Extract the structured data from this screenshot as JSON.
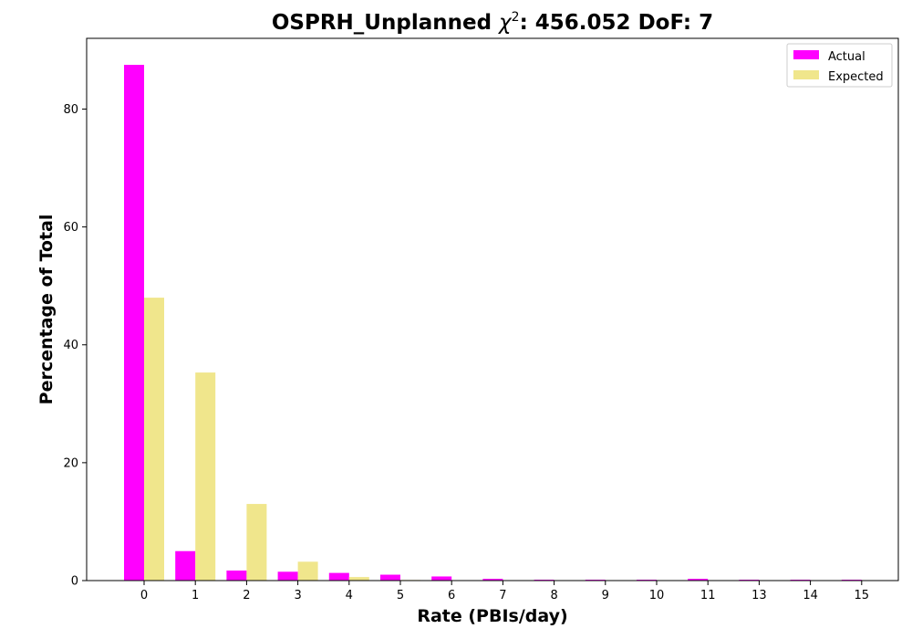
{
  "chart_data": {
    "type": "bar",
    "title_main": "OSPRH_Unplanned ",
    "title_chi": "χ",
    "title_sup": "2",
    "title_rest": ": 456.052 DoF: 7",
    "xlabel": "Rate (PBIs/day)",
    "ylabel": "Percentage of Total",
    "categories": [
      "0",
      "1",
      "2",
      "3",
      "4",
      "5",
      "6",
      "7",
      "8",
      "9",
      "10",
      "11",
      "13",
      "14",
      "15"
    ],
    "series": [
      {
        "name": "Actual",
        "color": "#ff00ff",
        "values": [
          87.5,
          5.0,
          1.7,
          1.5,
          1.3,
          1.0,
          0.7,
          0.3,
          0.15,
          0.15,
          0.15,
          0.3,
          0.15,
          0.15,
          0.15
        ]
      },
      {
        "name": "Expected",
        "color": "#f0e68c",
        "values": [
          48.0,
          35.3,
          13.0,
          3.2,
          0.6,
          0.1,
          0.0,
          0.0,
          0.0,
          0.0,
          0.0,
          0.0,
          0.0,
          0.0,
          0.0
        ]
      }
    ],
    "ylim": [
      0,
      92
    ],
    "yticks": [
      0,
      20,
      40,
      60,
      80
    ],
    "grid": false,
    "legend_position": "top-right"
  }
}
